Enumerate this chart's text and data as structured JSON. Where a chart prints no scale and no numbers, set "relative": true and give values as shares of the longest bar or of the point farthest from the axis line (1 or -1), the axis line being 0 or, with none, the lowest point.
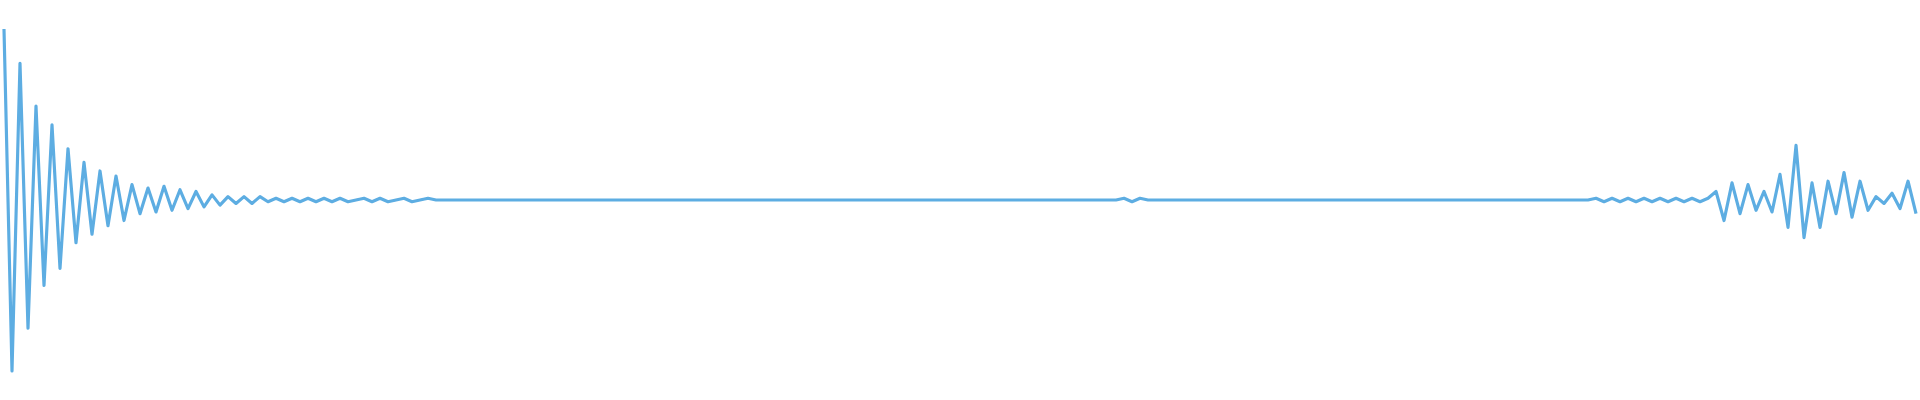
{
  "chart_data": {
    "type": "line",
    "relative": true,
    "color": "#5dade2",
    "marker": "none",
    "categories": [
      null,
      null,
      null,
      null,
      null,
      null,
      null,
      null,
      null,
      null,
      null,
      null,
      null,
      null,
      null,
      null,
      null,
      null,
      null,
      null,
      null,
      null,
      null,
      null,
      null,
      null,
      null,
      null,
      null,
      null,
      null,
      null,
      null,
      null,
      null,
      null,
      null,
      null,
      null,
      null,
      null,
      null,
      null,
      null,
      null,
      null,
      null,
      null,
      null,
      null,
      null,
      null,
      null,
      null,
      null,
      null,
      null,
      null,
      null,
      null,
      null,
      null,
      null,
      null,
      null,
      null,
      null,
      null,
      null,
      null,
      null,
      null,
      null,
      null,
      null,
      null,
      null,
      null,
      null,
      null,
      null,
      null,
      null,
      null,
      null,
      null,
      null,
      null,
      null,
      null,
      null,
      null,
      null,
      null,
      null,
      null,
      null,
      null,
      null,
      null,
      null,
      null,
      null,
      null,
      null,
      null,
      null,
      null,
      null,
      null,
      null,
      null,
      null,
      null,
      null,
      null,
      null,
      null,
      null,
      null,
      null,
      null,
      null,
      null,
      null,
      null,
      null,
      null,
      null,
      null,
      null,
      null,
      null,
      null,
      null,
      null,
      null,
      null,
      null,
      null,
      null,
      null,
      null,
      null,
      null,
      null,
      null,
      null,
      null,
      null,
      null,
      null,
      null,
      null,
      null,
      null,
      null,
      null,
      null,
      null,
      null,
      null,
      null,
      null,
      null,
      null,
      null,
      null,
      null,
      null,
      null,
      null,
      null,
      null,
      null,
      null,
      null,
      null,
      null,
      null,
      null,
      null,
      null,
      null,
      null,
      null,
      null,
      null,
      null,
      null,
      null,
      null,
      null,
      null,
      null,
      null,
      null,
      null,
      null,
      null,
      null,
      null,
      null,
      null,
      null,
      null,
      null,
      null,
      null,
      null,
      null,
      null,
      null,
      null,
      null,
      null,
      null,
      null,
      null,
      null,
      null,
      null,
      null,
      null,
      null,
      null,
      null,
      null,
      null,
      null,
      null,
      null,
      null,
      null,
      null,
      null,
      null,
      null,
      null,
      null
    ],
    "values": [
      1.0,
      0,
      0.9,
      0.125,
      0.775,
      0.25,
      0.72,
      0.3,
      0.65,
      0.375,
      0.61,
      0.4,
      0.585,
      0.425,
      0.57,
      0.44,
      0.545,
      0.46,
      0.535,
      0.465,
      0.54,
      0.47,
      0.53,
      0.475,
      0.525,
      0.48,
      0.515,
      0.485,
      0.51,
      0.49,
      0.51,
      0.49,
      0.51,
      0.495,
      0.505,
      0.495,
      0.505,
      0.495,
      0.505,
      0.495,
      0.505,
      0.495,
      0.505,
      0.495,
      0.5,
      0.505,
      0.495,
      0.505,
      0.495,
      0.5,
      0.505,
      0.495,
      0.5,
      0.505,
      0.5,
      0.5,
      0.5,
      0.5,
      0.5,
      0.5,
      0.5,
      0.5,
      0.5,
      0.5,
      0.5,
      0.5,
      0.5,
      0.5,
      0.5,
      0.5,
      0.5,
      0.5,
      0.5,
      0.5,
      0.5,
      0.5,
      0.5,
      0.5,
      0.5,
      0.5,
      0.5,
      0.5,
      0.5,
      0.5,
      0.5,
      0.5,
      0.5,
      0.5,
      0.5,
      0.5,
      0.5,
      0.5,
      0.5,
      0.5,
      0.5,
      0.5,
      0.5,
      0.5,
      0.5,
      0.5,
      0.5,
      0.5,
      0.5,
      0.5,
      0.5,
      0.5,
      0.5,
      0.5,
      0.5,
      0.5,
      0.5,
      0.5,
      0.5,
      0.5,
      0.5,
      0.5,
      0.5,
      0.5,
      0.5,
      0.5,
      0.5,
      0.5,
      0.5,
      0.5,
      0.5,
      0.5,
      0.5,
      0.5,
      0.5,
      0.5,
      0.5,
      0.5,
      0.5,
      0.5,
      0.5,
      0.5,
      0.5,
      0.5,
      0.5,
      0.5,
      0.505,
      0.495,
      0.505,
      0.5,
      0.5,
      0.5,
      0.5,
      0.5,
      0.5,
      0.5,
      0.5,
      0.5,
      0.5,
      0.5,
      0.5,
      0.5,
      0.5,
      0.5,
      0.5,
      0.5,
      0.5,
      0.5,
      0.5,
      0.5,
      0.5,
      0.5,
      0.5,
      0.5,
      0.5,
      0.5,
      0.5,
      0.5,
      0.5,
      0.5,
      0.5,
      0.5,
      0.5,
      0.5,
      0.5,
      0.5,
      0.5,
      0.5,
      0.5,
      0.5,
      0.5,
      0.5,
      0.5,
      0.5,
      0.5,
      0.5,
      0.5,
      0.5,
      0.5,
      0.5,
      0.5,
      0.5,
      0.5,
      0.5,
      0.5,
      0.505,
      0.495,
      0.505,
      0.495,
      0.505,
      0.495,
      0.505,
      0.495,
      0.505,
      0.495,
      0.505,
      0.495,
      0.505,
      0.495,
      0.505,
      0.525,
      0.44,
      0.55,
      0.46,
      0.545,
      0.47,
      0.525,
      0.465,
      0.575,
      0.42,
      0.66,
      0.39,
      0.55,
      0.42,
      0.555,
      0.46,
      0.58,
      0.45,
      0.555,
      0.47,
      0.51,
      0.49,
      0.52,
      0.475,
      0.555,
      0.46
    ]
  }
}
